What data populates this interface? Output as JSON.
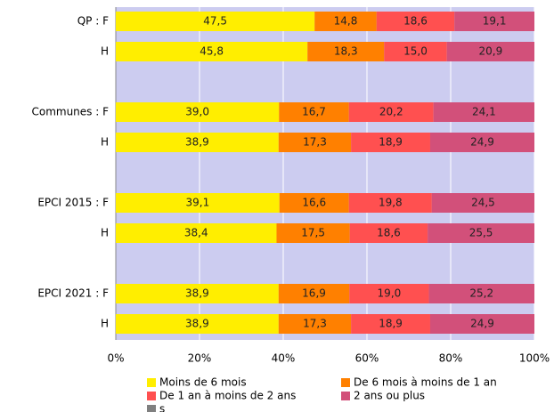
{
  "chart_data": {
    "type": "stacked_bar_horizontal",
    "categories": [
      "QP : F",
      "H",
      "Communes : F",
      "H",
      "EPCI 2015 : F",
      "H",
      "EPCI 2021 : F",
      "H"
    ],
    "series": [
      {
        "name": "Moins de 6 mois",
        "color": "#ffee00",
        "values": [
          47.5,
          45.8,
          39.0,
          38.9,
          39.1,
          38.4,
          38.9,
          38.9
        ],
        "value_labels": [
          "47,5",
          "45,8",
          "39,0",
          "38,9",
          "39,1",
          "38,4",
          "38,9",
          "38,9"
        ]
      },
      {
        "name": "De 6 mois à moins de 1 an",
        "color": "#ff8000",
        "values": [
          14.8,
          18.3,
          16.7,
          17.3,
          16.6,
          17.5,
          16.9,
          17.3
        ],
        "value_labels": [
          "14,8",
          "18,3",
          "16,7",
          "17,3",
          "16,6",
          "17,5",
          "16,9",
          "17,3"
        ]
      },
      {
        "name": "De 1 an à moins de 2 ans",
        "color": "#ff5050",
        "values": [
          18.6,
          15.0,
          20.2,
          18.9,
          19.8,
          18.6,
          19.0,
          18.9
        ],
        "value_labels": [
          "18,6",
          "15,0",
          "20,2",
          "18,9",
          "19,8",
          "18,6",
          "19,0",
          "18,9"
        ]
      },
      {
        "name": "2 ans ou plus",
        "color": "#d2507a",
        "values": [
          19.1,
          20.9,
          24.1,
          24.9,
          24.5,
          25.5,
          25.2,
          24.9
        ],
        "value_labels": [
          "19,1",
          "20,9",
          "24,1",
          "24,9",
          "24,5",
          "25,5",
          "25,2",
          "24,9"
        ]
      }
    ],
    "legend_extra": {
      "name": "s",
      "color": "#808080"
    },
    "xlim": [
      0,
      100
    ],
    "xticks": [
      {
        "value": 0,
        "label": "0%"
      },
      {
        "value": 20,
        "label": "20%"
      },
      {
        "value": 40,
        "label": "40%"
      },
      {
        "value": 60,
        "label": "60%"
      },
      {
        "value": 80,
        "label": "80%"
      },
      {
        "value": 100,
        "label": "100%"
      }
    ],
    "grid": true,
    "plot_background": "#ccccf0"
  }
}
